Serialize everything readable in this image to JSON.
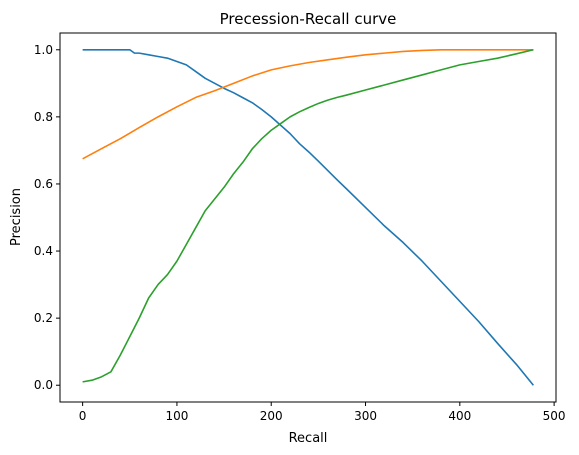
{
  "chart_data": {
    "type": "line",
    "title": "Precession-Recall curve",
    "xlabel": "Recall",
    "ylabel": "Precision",
    "xlim": [
      -24,
      502
    ],
    "ylim": [
      -0.05,
      1.05
    ],
    "xticks": [
      0,
      100,
      200,
      300,
      400,
      500
    ],
    "yticks": [
      0.0,
      0.2,
      0.4,
      0.6,
      0.8,
      1.0
    ],
    "grid": false,
    "legend": "none",
    "series": [
      {
        "color": "#1f77b4",
        "x": [
          0,
          10,
          20,
          30,
          40,
          50,
          55,
          60,
          70,
          80,
          90,
          100,
          110,
          120,
          130,
          140,
          150,
          160,
          170,
          180,
          190,
          200,
          210,
          220,
          230,
          240,
          250,
          260,
          270,
          280,
          300,
          320,
          340,
          360,
          380,
          400,
          420,
          440,
          460,
          478
        ],
        "y": [
          1.0,
          1.0,
          1.0,
          1.0,
          1.0,
          1.0,
          0.99,
          0.99,
          0.985,
          0.98,
          0.975,
          0.965,
          0.955,
          0.935,
          0.915,
          0.9,
          0.885,
          0.872,
          0.857,
          0.842,
          0.822,
          0.8,
          0.775,
          0.75,
          0.72,
          0.695,
          0.668,
          0.64,
          0.612,
          0.585,
          0.53,
          0.475,
          0.425,
          0.37,
          0.31,
          0.25,
          0.19,
          0.125,
          0.062,
          0.0
        ]
      },
      {
        "color": "#ff7f0e",
        "x": [
          0,
          20,
          40,
          60,
          80,
          100,
          120,
          140,
          160,
          180,
          200,
          220,
          240,
          260,
          280,
          300,
          320,
          340,
          360,
          380,
          400,
          440,
          478
        ],
        "y": [
          0.675,
          0.705,
          0.735,
          0.768,
          0.8,
          0.83,
          0.858,
          0.878,
          0.9,
          0.922,
          0.94,
          0.952,
          0.962,
          0.97,
          0.978,
          0.985,
          0.99,
          0.995,
          0.998,
          1.0,
          1.0,
          1.0,
          1.0
        ]
      },
      {
        "color": "#2ca02c",
        "x": [
          0,
          10,
          20,
          30,
          40,
          50,
          60,
          70,
          80,
          90,
          100,
          110,
          120,
          130,
          140,
          150,
          160,
          170,
          180,
          190,
          200,
          210,
          220,
          230,
          240,
          250,
          260,
          270,
          280,
          300,
          320,
          340,
          360,
          380,
          400,
          420,
          440,
          460,
          478
        ],
        "y": [
          0.01,
          0.015,
          0.025,
          0.04,
          0.09,
          0.145,
          0.2,
          0.26,
          0.3,
          0.33,
          0.37,
          0.42,
          0.47,
          0.52,
          0.555,
          0.59,
          0.63,
          0.665,
          0.705,
          0.735,
          0.76,
          0.78,
          0.8,
          0.815,
          0.828,
          0.84,
          0.85,
          0.858,
          0.865,
          0.88,
          0.895,
          0.91,
          0.925,
          0.94,
          0.955,
          0.965,
          0.975,
          0.988,
          1.0
        ]
      }
    ]
  }
}
